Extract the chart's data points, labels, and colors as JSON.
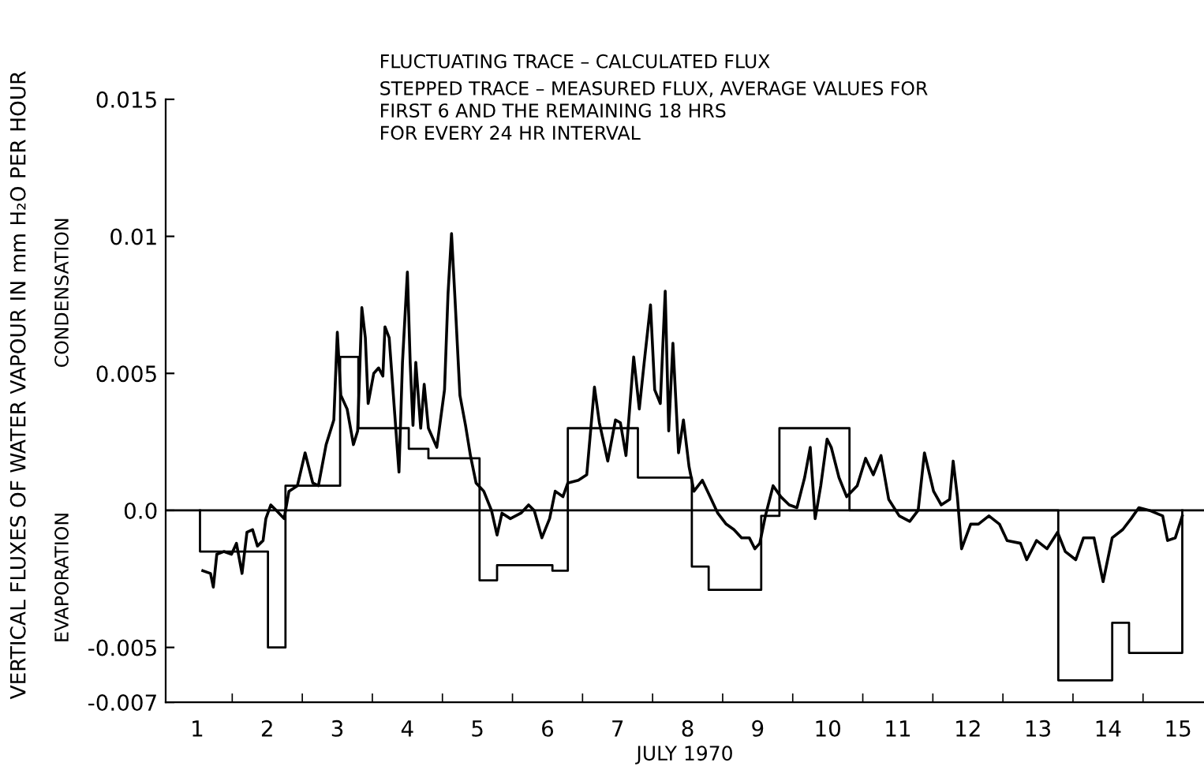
{
  "chart_data": {
    "type": "line",
    "xlabel": "JULY 1970",
    "ylabel": "VERTICAL FLUXES OF WATER VAPOUR IN mm H₂O PER HOUR",
    "annotations": [
      "FLUCTUATING TRACE – CALCULATED FLUX",
      "STEPPED TRACE – MEASURED FLUX, AVERAGE VALUES FOR\nFIRST 6 AND THE REMAINING 18 HRS\nFOR EVERY 24 HR INTERVAL",
      "CONDENSATION",
      "EVAPORATION"
    ],
    "xlim": [
      0.55,
      15.37
    ],
    "xticks": [
      {
        "value": 1,
        "label": "1"
      },
      {
        "value": 1.5,
        "label": null
      },
      {
        "value": 2,
        "label": "2"
      },
      {
        "value": 2.5,
        "label": null
      },
      {
        "value": 3,
        "label": "3"
      },
      {
        "value": 3.5,
        "label": null
      },
      {
        "value": 4,
        "label": "4"
      },
      {
        "value": 4.5,
        "label": null
      },
      {
        "value": 5,
        "label": "5"
      },
      {
        "value": 5.5,
        "label": null
      },
      {
        "value": 6,
        "label": "6"
      },
      {
        "value": 6.5,
        "label": null
      },
      {
        "value": 7,
        "label": "7"
      },
      {
        "value": 7.5,
        "label": null
      },
      {
        "value": 8,
        "label": "8"
      },
      {
        "value": 8.5,
        "label": null
      },
      {
        "value": 9,
        "label": "9"
      },
      {
        "value": 9.5,
        "label": null
      },
      {
        "value": 10,
        "label": "10"
      },
      {
        "value": 10.5,
        "label": null
      },
      {
        "value": 11,
        "label": "11"
      },
      {
        "value": 11.5,
        "label": null
      },
      {
        "value": 12,
        "label": "12"
      },
      {
        "value": 12.5,
        "label": null
      },
      {
        "value": 13,
        "label": "13"
      },
      {
        "value": 13.5,
        "label": null
      },
      {
        "value": 14,
        "label": "14"
      },
      {
        "value": 14.5,
        "label": null
      },
      {
        "value": 15,
        "label": "15"
      }
    ],
    "ylim": [
      -0.007,
      0.015
    ],
    "yticks": [
      {
        "value": -0.007,
        "label": "-0.007"
      },
      {
        "value": -0.005,
        "label": "-0.005"
      },
      {
        "value": 0,
        "label": "0.0"
      },
      {
        "value": 0.005,
        "label": "0.005"
      },
      {
        "value": 0.01,
        "label": "0.01"
      },
      {
        "value": 0.015,
        "label": "0.015"
      }
    ],
    "ref_lines": [
      {
        "axis": "y",
        "value": 0,
        "color": "#000000"
      }
    ],
    "grid": false,
    "legend": false,
    "series": [
      {
        "color": "#000000",
        "x": [
          1.08,
          1.19,
          1.23,
          1.28,
          1.38,
          1.49,
          1.56,
          1.64,
          1.71,
          1.79,
          1.86,
          1.94,
          1.98,
          2.05,
          2.13,
          2.24,
          2.31,
          2.43,
          2.54,
          2.65,
          2.73,
          2.84,
          2.95,
          3.0,
          3.05,
          3.14,
          3.23,
          3.29,
          3.35,
          3.4,
          3.44,
          3.52,
          3.59,
          3.65,
          3.68,
          3.74,
          3.82,
          3.88,
          3.93,
          4.0,
          4.04,
          4.08,
          4.12,
          4.19,
          4.24,
          4.3,
          4.42,
          4.53,
          4.58,
          4.63,
          4.68,
          4.75,
          4.83,
          4.9,
          4.98,
          5.09,
          5.2,
          5.28,
          5.35,
          5.47,
          5.62,
          5.73,
          5.81,
          5.92,
          6.03,
          6.11,
          6.22,
          6.29,
          6.44,
          6.56,
          6.67,
          6.74,
          6.86,
          6.97,
          7.04,
          7.12,
          7.23,
          7.31,
          7.38,
          7.47,
          7.53,
          7.61,
          7.68,
          7.73,
          7.79,
          7.87,
          7.94,
          8.02,
          8.09,
          8.21,
          8.32,
          8.43,
          8.55,
          8.66,
          8.77,
          8.88,
          8.96,
          9.03,
          9.11,
          9.22,
          9.33,
          9.45,
          9.56,
          9.67,
          9.75,
          9.82,
          9.9,
          9.99,
          10.05,
          10.16,
          10.27,
          10.42,
          10.54,
          10.65,
          10.76,
          10.87,
          11.02,
          11.17,
          11.29,
          11.38,
          11.51,
          11.62,
          11.74,
          11.79,
          11.85,
          11.91,
          12.04,
          12.15,
          12.3,
          12.45,
          12.56,
          12.75,
          12.84,
          12.98,
          13.13,
          13.28,
          13.39,
          13.54,
          13.65,
          13.8,
          13.93,
          14.06,
          14.21,
          14.33,
          14.44,
          14.59,
          14.78,
          14.85,
          14.96,
          15.06
        ],
        "values": [
          -0.0022,
          -0.0023,
          -0.0028,
          -0.0016,
          -0.0015,
          -0.0016,
          -0.0012,
          -0.0023,
          -0.0008,
          -0.0007,
          -0.0013,
          -0.0011,
          -0.0003,
          0.0002,
          0.0,
          -0.0003,
          0.0007,
          0.0009,
          0.0021,
          0.001,
          0.0009,
          0.0024,
          0.0033,
          0.0065,
          0.0042,
          0.0037,
          0.0024,
          0.0029,
          0.0074,
          0.0063,
          0.0039,
          0.005,
          0.0052,
          0.0049,
          0.0067,
          0.0063,
          0.0035,
          0.0014,
          0.0054,
          0.0087,
          0.0054,
          0.0031,
          0.0054,
          0.003,
          0.0046,
          0.003,
          0.0023,
          0.0044,
          0.0079,
          0.0101,
          0.0077,
          0.0042,
          0.0031,
          0.002,
          0.001,
          0.0007,
          0.0,
          -0.0009,
          -0.0001,
          -0.0003,
          -0.0001,
          0.0002,
          0.0,
          -0.001,
          -0.0003,
          0.0007,
          0.0005,
          0.001,
          0.0011,
          0.0013,
          0.0045,
          0.0032,
          0.0018,
          0.0033,
          0.0032,
          0.002,
          0.0056,
          0.0037,
          0.0054,
          0.0075,
          0.0044,
          0.0039,
          0.008,
          0.0029,
          0.0061,
          0.0021,
          0.0033,
          0.0016,
          0.0007,
          0.0011,
          0.0005,
          -0.0001,
          -0.0005,
          -0.0007,
          -0.001,
          -0.001,
          -0.0014,
          -0.0012,
          -0.0002,
          0.0009,
          0.0005,
          0.0002,
          0.0001,
          0.0012,
          0.0023,
          -0.0003,
          0.0009,
          0.0026,
          0.0023,
          0.0012,
          0.0005,
          0.0009,
          0.0019,
          0.0013,
          0.002,
          0.0004,
          -0.0002,
          -0.0004,
          0.0,
          0.0021,
          0.0007,
          0.0002,
          0.0004,
          0.0018,
          0.0005,
          -0.0014,
          -0.0005,
          -0.0005,
          -0.0002,
          -0.0005,
          -0.0011,
          -0.0012,
          -0.0018,
          -0.0011,
          -0.0014,
          -0.0008,
          -0.0015,
          -0.0018,
          -0.001,
          -0.001,
          -0.0026,
          -0.001,
          -0.0007,
          -0.0003,
          0.0001,
          0.0,
          -0.0002,
          -0.0011,
          -0.001,
          -0.0002
        ]
      },
      {
        "type": "step",
        "color": "#000000",
        "x": [
          1.04,
          1.04,
          2.01,
          2.26,
          3.04,
          3.3,
          4.02,
          4.3,
          5.03,
          5.28,
          6.07,
          6.29,
          7.29,
          8.06,
          8.3,
          9.05,
          9.31,
          10.31,
          13.29,
          14.06,
          14.3,
          15.06
        ],
        "values": [
          0.0,
          -0.0015,
          -0.005,
          0.0009,
          0.0056,
          0.003,
          0.00225,
          0.0019,
          -0.00255,
          -0.002,
          -0.0022,
          0.003,
          0.0012,
          -0.00205,
          -0.0029,
          -0.0002,
          0.003,
          0.0,
          -0.0062,
          -0.0041,
          -0.0052,
          0.0
        ]
      }
    ]
  }
}
